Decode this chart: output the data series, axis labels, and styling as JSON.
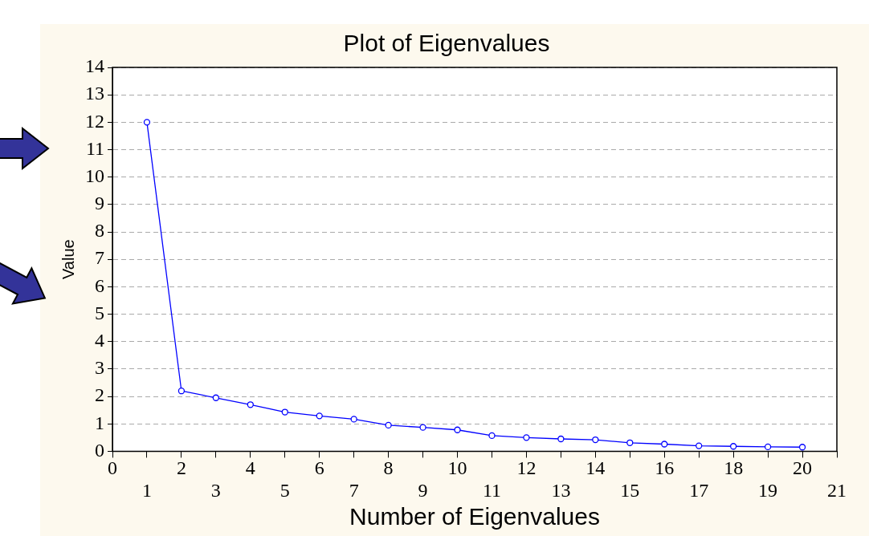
{
  "chart_data": {
    "type": "line",
    "title": "Plot of Eigenvalues",
    "xlabel": "Number of Eigenvalues",
    "ylabel": "Value",
    "x": [
      1,
      2,
      3,
      4,
      5,
      6,
      7,
      8,
      9,
      10,
      11,
      12,
      13,
      14,
      15,
      16,
      17,
      18,
      19,
      20
    ],
    "series": [
      {
        "color": "#0000ff",
        "values": [
          12,
          2.2,
          1.95,
          1.7,
          1.43,
          1.29,
          1.17,
          0.95,
          0.87,
          0.78,
          0.57,
          0.5,
          0.45,
          0.42,
          0.31,
          0.26,
          0.2,
          0.18,
          0.16,
          0.15
        ]
      }
    ],
    "xlim": [
      0,
      21
    ],
    "xticks": [
      0,
      2,
      4,
      6,
      8,
      10,
      12,
      14,
      16,
      18,
      20
    ],
    "x2lim": [
      0,
      21
    ],
    "x2ticks": [
      1,
      3,
      5,
      7,
      9,
      11,
      13,
      15,
      17,
      19,
      21
    ],
    "ylim": [
      0,
      14
    ],
    "yticks": [
      0,
      1,
      2,
      3,
      4,
      5,
      6,
      7,
      8,
      9,
      10,
      11,
      12,
      13,
      14
    ],
    "grid": "y",
    "legend": false,
    "marker": "circle",
    "line_style": "solid"
  }
}
